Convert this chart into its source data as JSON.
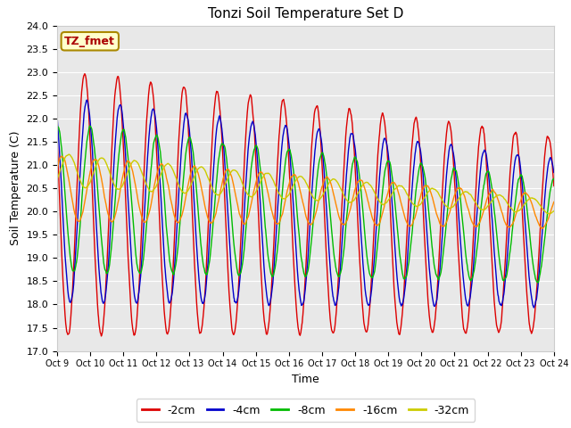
{
  "title": "Tonzi Soil Temperature Set D",
  "xlabel": "Time",
  "ylabel": "Soil Temperature (C)",
  "ylim": [
    17.0,
    24.0
  ],
  "yticks": [
    17.0,
    17.5,
    18.0,
    18.5,
    19.0,
    19.5,
    20.0,
    20.5,
    21.0,
    21.5,
    22.0,
    22.5,
    23.0,
    23.5,
    24.0
  ],
  "xtick_labels": [
    "Oct 9",
    "Oct 10",
    "Oct 11",
    "Oct 12",
    "Oct 13",
    "Oct 14",
    "Oct 15",
    "Oct 16",
    "Oct 17",
    "Oct 18",
    "Oct 19",
    "Oct 20",
    "Oct 21",
    "Oct 22",
    "Oct 23",
    "Oct 24"
  ],
  "series_labels": [
    "-2cm",
    "-4cm",
    "-8cm",
    "-16cm",
    "-32cm"
  ],
  "series_colors": [
    "#dd0000",
    "#0000cc",
    "#00bb00",
    "#ff8800",
    "#cccc00"
  ],
  "annotation_text": "TZ_fmet",
  "annotation_color": "#aa0000",
  "annotation_bg": "#ffffcc",
  "annotation_border": "#aa8800",
  "plot_bg": "#e8e8e8",
  "fig_bg": "#ffffff",
  "n_days": 15,
  "points_per_day": 96
}
